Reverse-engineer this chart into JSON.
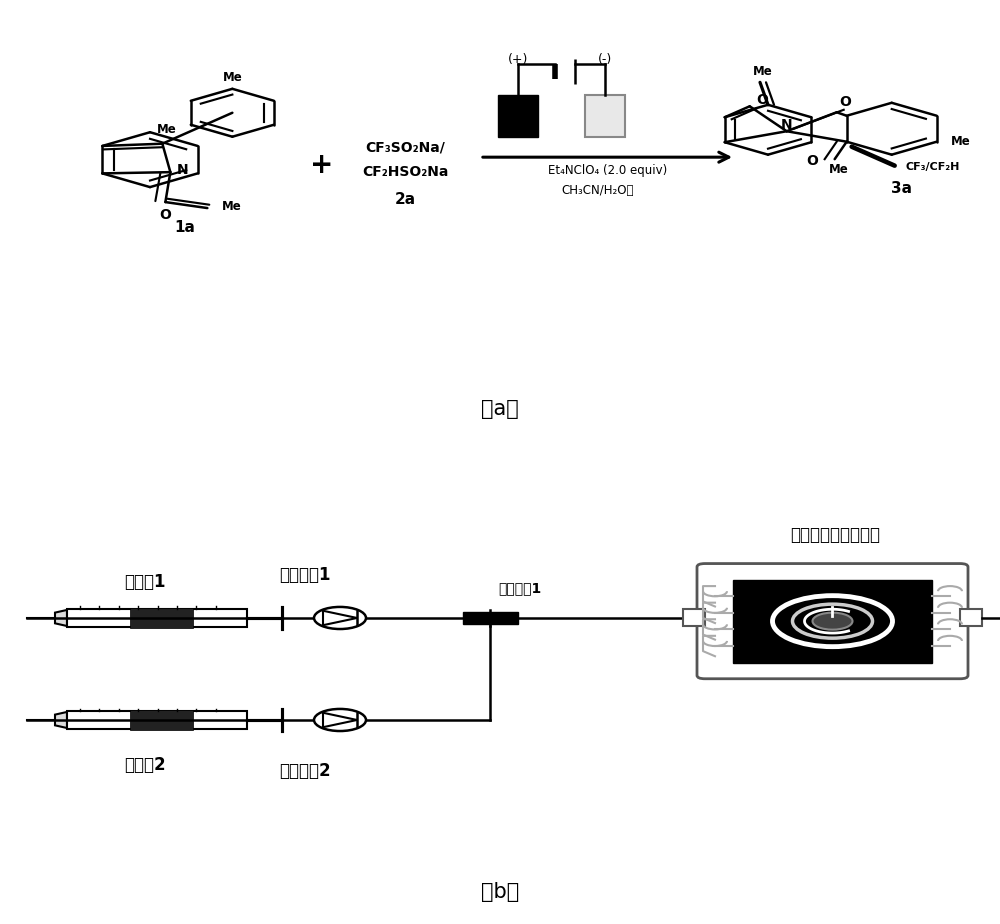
{
  "bg_color": "#ffffff",
  "panel_a_label": "（a）",
  "panel_b_label": "（b）",
  "label_1a": "1a",
  "label_2a": "2a",
  "label_3a": "3a",
  "reagent_line1": "CF₃SO₂Na/",
  "reagent_line2": "CF₂HSO₂Na",
  "condition1": "Et₄NClO₄ (2.0 equiv)",
  "condition2": "CH₃CN/H₂O，",
  "plus_sign": "+",
  "electrode_pos": "(+)",
  "electrode_neg": "(-)",
  "syringe1_label": "注射器1",
  "syringe2_label": "注射器2",
  "inlet1_label": "物料进口1",
  "inlet2_label": "物料进口2",
  "mixer_label": "微混合器1",
  "reactor_label": "电化学微通道反应装",
  "figsize": [
    10.0,
    9.24
  ],
  "dpi": 100
}
